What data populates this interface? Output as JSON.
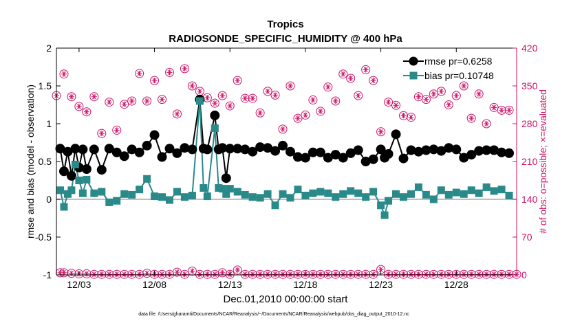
{
  "chart_data": {
    "type": "line",
    "title": "Tropics",
    "subtitle": "RADIOSONDE_SPECIFIC_HUMIDITY @ 400 hPa",
    "xlabel": "Dec.01,2010 00:00:00 start",
    "ylabel_left": "rmse and bias (model - observation)",
    "ylabel_right": "# of obs: o=possible; ×=evaluated",
    "footnote": "data file: /Users/gharamti/Documents/NCAR/Reanalysis/~/Documents/NCAR/Reanalysis/webpub/obs_diag_output_2010-12.nc",
    "xlim": [
      1.5,
      32.0
    ],
    "ylim_left": [
      -1,
      2
    ],
    "ylim_right": [
      0,
      420
    ],
    "xticks": [
      {
        "value": 3,
        "label": "12/03"
      },
      {
        "value": 8,
        "label": "12/08"
      },
      {
        "value": 13,
        "label": "12/13"
      },
      {
        "value": 18,
        "label": "12/18"
      },
      {
        "value": 23,
        "label": "12/23"
      },
      {
        "value": 28,
        "label": "12/28"
      }
    ],
    "yticks_left": [
      {
        "value": 2,
        "label": "2"
      },
      {
        "value": 1.5,
        "label": "1.5"
      },
      {
        "value": 1,
        "label": "1"
      },
      {
        "value": 0.5,
        "label": "0.5"
      },
      {
        "value": 0,
        "label": "0"
      },
      {
        "value": -0.5,
        "label": "-0.5"
      },
      {
        "value": -1,
        "label": "-1"
      }
    ],
    "yticks_right": [
      {
        "value": 420,
        "label": "420"
      },
      {
        "value": 350,
        "label": "350"
      },
      {
        "value": 280,
        "label": "280"
      },
      {
        "value": 210,
        "label": "210"
      },
      {
        "value": 140,
        "label": "140"
      },
      {
        "value": 70,
        "label": "70"
      },
      {
        "value": 0,
        "label": "0"
      }
    ],
    "legend_position": "top-right",
    "series": [
      {
        "name": "rmse pr=0.6258",
        "color": "#000000",
        "x": [
          1.75,
          2.0,
          2.25,
          2.5,
          2.75,
          3.0,
          3.25,
          3.5,
          4.0,
          4.5,
          5.0,
          5.5,
          6.0,
          6.5,
          7.0,
          7.5,
          8.0,
          8.5,
          9.0,
          9.5,
          10.0,
          10.5,
          11.0,
          11.25,
          11.5,
          12.0,
          12.25,
          12.5,
          12.75,
          13.0,
          13.5,
          14.0,
          14.5,
          15.0,
          15.5,
          16.0,
          16.5,
          17.0,
          17.5,
          18.0,
          18.5,
          19.0,
          19.5,
          20.0,
          20.5,
          21.0,
          21.5,
          22.0,
          22.5,
          23.0,
          23.25,
          23.5,
          24.0,
          24.5,
          25.0,
          25.5,
          26.0,
          26.5,
          27.0,
          27.5,
          28.0,
          28.5,
          29.0,
          29.5,
          30.0,
          30.5,
          31.0,
          31.5
        ],
        "values": [
          0.67,
          0.37,
          0.63,
          0.31,
          0.67,
          0.42,
          0.66,
          0.4,
          0.66,
          0.39,
          0.67,
          0.62,
          0.57,
          0.66,
          0.62,
          0.71,
          0.85,
          0.56,
          0.67,
          0.61,
          0.68,
          0.66,
          1.32,
          0.67,
          0.66,
          1.11,
          0.66,
          0.68,
          0.28,
          0.67,
          0.67,
          0.66,
          0.63,
          0.69,
          0.68,
          0.64,
          0.71,
          0.63,
          0.56,
          0.55,
          0.62,
          0.62,
          0.55,
          0.59,
          0.55,
          0.61,
          0.65,
          0.5,
          0.53,
          0.66,
          0.55,
          0.6,
          0.86,
          0.54,
          0.65,
          0.63,
          0.65,
          0.66,
          0.64,
          0.68,
          0.66,
          0.55,
          0.59,
          0.64,
          0.65,
          0.65,
          0.62,
          0.61
        ]
      },
      {
        "name": "bias pr=0.10748",
        "color": "#2a8a8a",
        "x": [
          1.75,
          2.0,
          2.25,
          2.5,
          2.75,
          3.0,
          3.25,
          3.5,
          4.0,
          4.5,
          5.0,
          5.5,
          6.0,
          6.5,
          7.0,
          7.5,
          8.0,
          8.5,
          9.0,
          9.5,
          10.0,
          10.5,
          11.0,
          11.25,
          11.5,
          12.0,
          12.25,
          12.5,
          12.75,
          13.0,
          13.5,
          14.0,
          14.5,
          15.0,
          15.5,
          16.0,
          16.5,
          17.0,
          17.5,
          18.0,
          18.5,
          19.0,
          19.5,
          20.0,
          20.5,
          21.0,
          21.5,
          22.0,
          22.5,
          23.0,
          23.25,
          23.5,
          24.0,
          24.5,
          25.0,
          25.5,
          26.0,
          26.5,
          27.0,
          27.5,
          28.0,
          28.5,
          29.0,
          29.5,
          30.0,
          30.5,
          31.0,
          31.5
        ],
        "values": [
          0.12,
          -0.1,
          0.07,
          0.12,
          0.46,
          0.25,
          0.08,
          0.26,
          0.08,
          0.1,
          -0.04,
          -0.02,
          0.07,
          0.06,
          0.13,
          0.27,
          0.04,
          0.03,
          -0.01,
          0.1,
          0.03,
          0.05,
          1.3,
          0.15,
          0.04,
          0.94,
          0.15,
          0.14,
          0.07,
          0.14,
          0.1,
          0.06,
          0.03,
          0.02,
          0.07,
          -0.08,
          0.07,
          0.02,
          0.13,
          0.05,
          0.08,
          0.1,
          0.08,
          0.03,
          0.07,
          0.11,
          0.08,
          0.03,
          0.1,
          -0.08,
          -0.21,
          -0.02,
          0.07,
          0.03,
          0.07,
          0.16,
          0.06,
          0.0,
          0.12,
          0.06,
          0.09,
          0.07,
          0.12,
          0.08,
          0.16,
          0.11,
          0.13,
          0.05
        ]
      }
    ],
    "obs_possible": {
      "name": "possible",
      "color": "#cc1166",
      "x": [
        1.5,
        2.0,
        2.5,
        3.0,
        3.5,
        4.0,
        4.5,
        5.0,
        5.5,
        6.0,
        6.5,
        7.0,
        7.5,
        8.0,
        8.5,
        9.0,
        9.5,
        10.0,
        10.5,
        11.0,
        11.5,
        12.0,
        12.5,
        13.0,
        13.5,
        14.0,
        14.5,
        15.0,
        15.5,
        16.0,
        16.5,
        17.0,
        17.5,
        18.0,
        18.5,
        19.0,
        19.5,
        20.0,
        20.5,
        21.0,
        21.5,
        22.0,
        22.5,
        23.0,
        23.5,
        24.0,
        24.5,
        25.0,
        25.5,
        26.0,
        26.5,
        27.0,
        27.5,
        28.0,
        28.5,
        29.0,
        29.5,
        30.0,
        30.5,
        31.0,
        31.5
      ],
      "values": [
        332,
        372,
        330,
        312,
        302,
        330,
        262,
        320,
        268,
        316,
        322,
        373,
        322,
        360,
        325,
        375,
        298,
        382,
        350,
        340,
        328,
        318,
        332,
        313,
        360,
        327,
        327,
        300,
        340,
        333,
        270,
        350,
        290,
        296,
        324,
        303,
        348,
        322,
        372,
        364,
        332,
        380,
        360,
        265,
        320,
        314,
        295,
        292,
        330,
        325,
        335,
        340,
        315,
        332,
        350,
        290,
        335,
        280,
        310,
        305,
        305
      ]
    },
    "obs_bottom": {
      "name": "possible (near zero)",
      "color": "#cc1166",
      "x": [
        1.75,
        2.0,
        2.5,
        3.0,
        3.5,
        4.0,
        4.5,
        5.0,
        5.5,
        6.0,
        6.5,
        7.0,
        7.5,
        8.0,
        8.5,
        9.0,
        9.5,
        10.0,
        10.5,
        11.0,
        11.5,
        12.0,
        12.5,
        13.0,
        13.5,
        14.0,
        14.5,
        15.0,
        15.5,
        16.0,
        16.5,
        17.0,
        17.5,
        18.0,
        18.5,
        19.0,
        19.5,
        20.0,
        20.5,
        21.0,
        21.5,
        22.0,
        22.5,
        23.0,
        23.5,
        24.0,
        24.5,
        25.0,
        25.5,
        26.0,
        26.5,
        27.0,
        27.5,
        28.0,
        28.5,
        29.0,
        29.5,
        30.0,
        30.5,
        31.0,
        31.5,
        32.0
      ],
      "values": [
        4,
        4,
        3,
        2,
        2,
        1,
        1,
        1,
        1,
        1,
        1,
        1,
        3,
        1,
        1,
        1,
        5,
        1,
        7,
        1,
        1,
        1,
        4,
        1,
        9,
        1,
        1,
        1,
        1,
        1,
        1,
        1,
        1,
        1,
        1,
        1,
        1,
        1,
        1,
        1,
        1,
        1,
        1,
        10,
        1,
        1,
        1,
        1,
        1,
        1,
        1,
        1,
        1,
        1,
        1,
        1,
        1,
        1,
        1,
        1,
        1,
        1
      ]
    }
  }
}
